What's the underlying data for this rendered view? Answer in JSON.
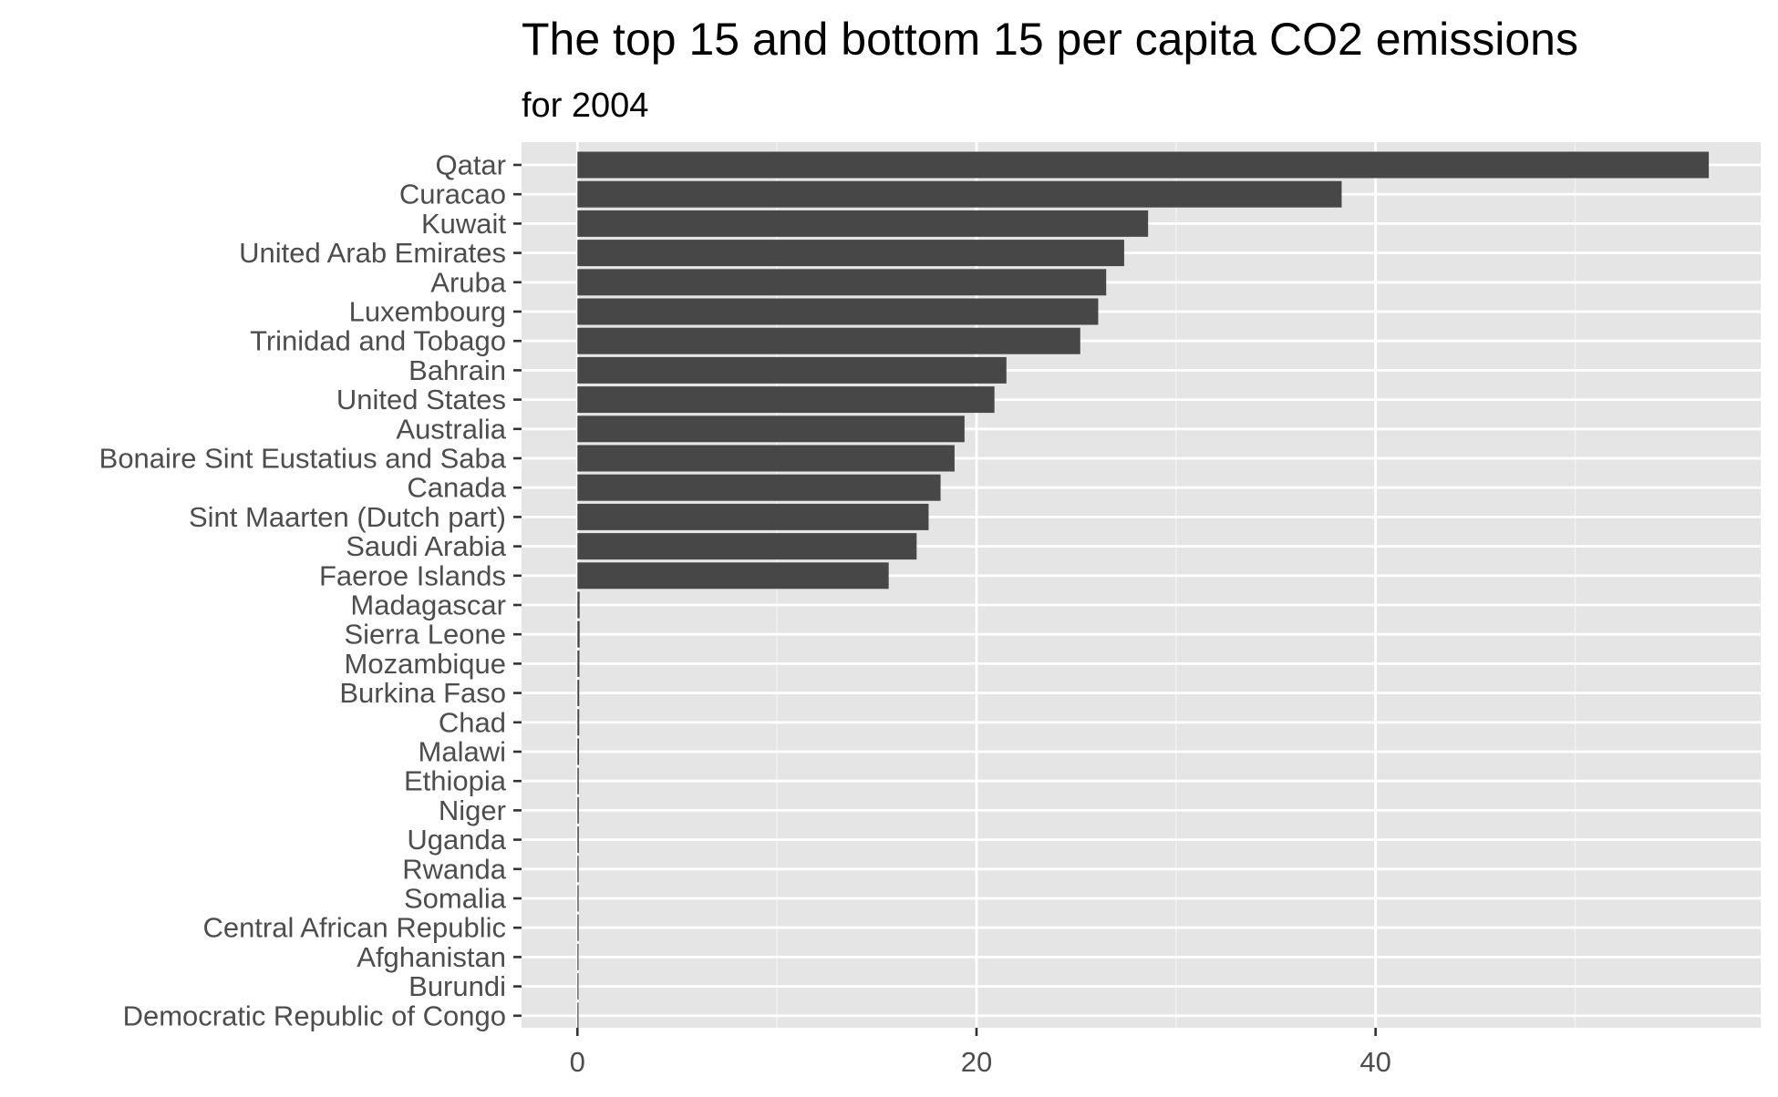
{
  "chart_data": {
    "type": "bar",
    "orientation": "horizontal",
    "title": "The top 15 and bottom 15 per capita CO2 emissions",
    "subtitle": "for 2004",
    "xlabel": "",
    "ylabel": "",
    "xlim": [
      -2.8,
      59.3
    ],
    "x_ticks": [
      0,
      20,
      40
    ],
    "grid": true,
    "colors": {
      "bar": "#474747",
      "panel_background": "#e5e5e5",
      "grid_major": "#ffffff",
      "grid_minor": "#f2f2f2",
      "tick_label": "#4d4d4d",
      "title": "#000000"
    },
    "categories": [
      "Qatar",
      "Curacao",
      "Kuwait",
      "United Arab Emirates",
      "Aruba",
      "Luxembourg",
      "Trinidad and Tobago",
      "Bahrain",
      "United States",
      "Australia",
      "Bonaire Sint Eustatius and Saba",
      "Canada",
      "Sint Maarten (Dutch part)",
      "Saudi Arabia",
      "Faeroe Islands",
      "Madagascar",
      "Sierra Leone",
      "Mozambique",
      "Burkina Faso",
      "Chad",
      "Malawi",
      "Ethiopia",
      "Niger",
      "Uganda",
      "Rwanda",
      "Somalia",
      "Central African Republic",
      "Afghanistan",
      "Burundi",
      "Democratic Republic of Congo"
    ],
    "values": [
      56.7,
      38.3,
      28.6,
      27.4,
      26.5,
      26.1,
      25.2,
      21.5,
      20.9,
      19.4,
      18.9,
      18.2,
      17.6,
      17.0,
      15.6,
      0.11,
      0.11,
      0.1,
      0.09,
      0.09,
      0.08,
      0.07,
      0.07,
      0.07,
      0.06,
      0.06,
      0.06,
      0.05,
      0.04,
      0.03
    ]
  }
}
